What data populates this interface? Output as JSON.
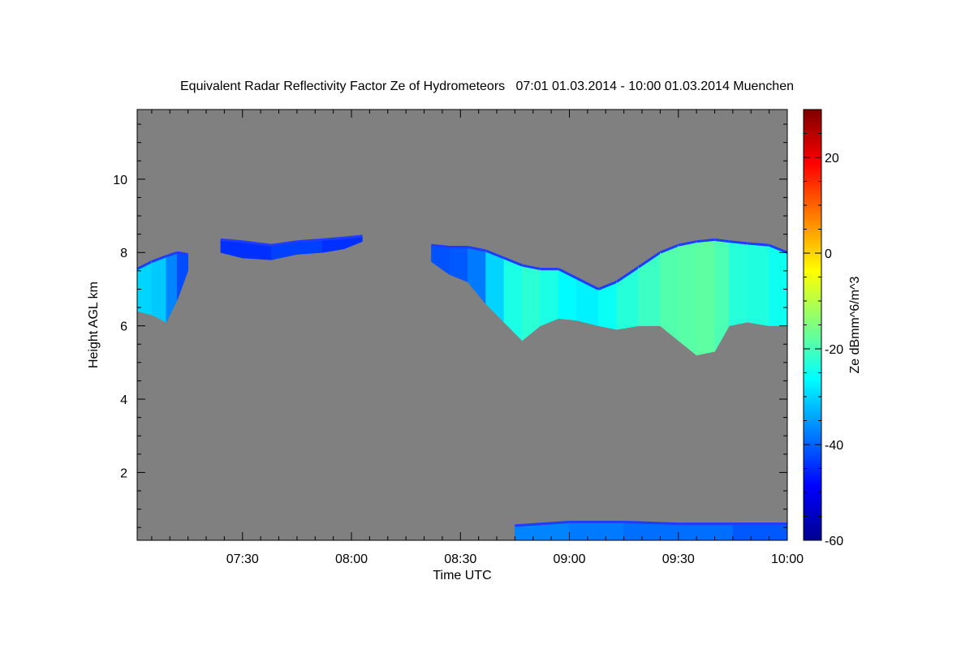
{
  "chart_data": {
    "type": "heatmap",
    "title": "Equivalent Radar Reflectivity Factor Ze of Hydrometeors   07:01 01.03.2014 - 10:00 01.03.2014 Muenchen",
    "xlabel": "Time UTC",
    "ylabel": "Height AGL km",
    "colorbar_label": "Ze dBmm^6/m^3",
    "x_range": [
      "07:01",
      "10:00"
    ],
    "x_ticks": [
      "07:30",
      "08:00",
      "08:30",
      "09:00",
      "09:30",
      "10:00"
    ],
    "ylim": [
      0.15,
      11.9
    ],
    "y_ticks": [
      2,
      4,
      6,
      8,
      10
    ],
    "colorbar_range": [
      -60,
      30
    ],
    "colorbar_ticks": [
      -60,
      -40,
      -20,
      0,
      20
    ],
    "colormap": "jet",
    "background_color": "#808080",
    "echo_regions": [
      {
        "name": "upper cloud layer",
        "t": [
          "07:01",
          "07:05",
          "07:09",
          "07:12",
          "07:15",
          "07:17",
          "07:20",
          "07:24",
          "07:30",
          "07:38",
          "07:45",
          "07:52",
          "07:58",
          "08:03",
          "08:16",
          "08:22",
          "08:27",
          "08:32",
          "08:37",
          "08:42",
          "08:47",
          "08:52",
          "08:57",
          "09:02",
          "09:08",
          "09:13",
          "09:19",
          "09:25",
          "09:30",
          "09:35",
          "09:40",
          "09:44",
          "09:49",
          "09:55",
          "10:00"
        ],
        "top_km": [
          7.55,
          7.75,
          7.9,
          8.0,
          7.95,
          0,
          0,
          8.35,
          8.3,
          8.2,
          8.3,
          8.35,
          8.4,
          8.45,
          0,
          8.2,
          8.15,
          8.15,
          8.05,
          7.85,
          7.65,
          7.55,
          7.55,
          7.3,
          7.0,
          7.2,
          7.6,
          8.0,
          8.2,
          8.3,
          8.35,
          8.3,
          8.25,
          8.2,
          8.0
        ],
        "base_km": [
          6.4,
          6.3,
          6.1,
          6.7,
          7.5,
          0,
          0,
          8.0,
          7.85,
          7.8,
          7.95,
          8.0,
          8.1,
          8.3,
          0,
          7.75,
          7.4,
          7.2,
          6.6,
          6.1,
          5.6,
          6.0,
          6.2,
          6.15,
          6.0,
          5.9,
          6.0,
          6.0,
          5.6,
          5.2,
          5.3,
          6.0,
          6.1,
          6.0,
          6.0
        ],
        "peak_ze": [
          -32,
          -28,
          -34,
          -40,
          -44,
          0,
          0,
          -44,
          -45,
          -44,
          -42,
          -44,
          -45,
          -44,
          0,
          -43,
          -40,
          -42,
          -34,
          -26,
          -22,
          -23,
          -25,
          -28,
          -27,
          -24,
          -22,
          -20,
          -18,
          -19,
          -17,
          -22,
          -24,
          -23,
          -27
        ]
      },
      {
        "name": "near-surface layer",
        "t": [
          "08:45",
          "09:00",
          "09:15",
          "09:30",
          "09:45",
          "10:00"
        ],
        "top_km": [
          0.55,
          0.65,
          0.65,
          0.6,
          0.6,
          0.6
        ],
        "base_km": [
          0.15,
          0.15,
          0.15,
          0.15,
          0.15,
          0.15
        ],
        "peak_ze": [
          -38,
          -36,
          -40,
          -38,
          -40,
          -42
        ]
      }
    ]
  }
}
